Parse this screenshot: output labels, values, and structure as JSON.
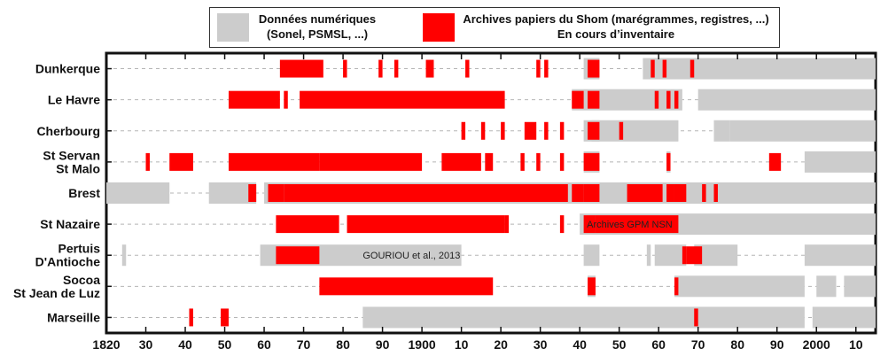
{
  "legend": {
    "digital": {
      "line1": "Données numériques",
      "line2": "(Sonel, PSMSL, ...)",
      "color": "#cccccc"
    },
    "paper": {
      "line1": "Archives papiers du Shom (marégrammes, registres, ...)",
      "line2": "En cours d’inventaire",
      "color": "#ff0000"
    }
  },
  "chart_data": {
    "type": "timeline",
    "title": "",
    "xlabel": "",
    "ylabel": "",
    "xlim": [
      1820,
      2015
    ],
    "x_tick_values": [
      1820,
      1830,
      1840,
      1850,
      1860,
      1870,
      1880,
      1890,
      1900,
      1910,
      1920,
      1930,
      1940,
      1950,
      1960,
      1970,
      1980,
      1990,
      2000,
      2010
    ],
    "x_tick_labels": [
      "1820",
      "30",
      "40",
      "50",
      "60",
      "70",
      "80",
      "90",
      "1900",
      "10",
      "20",
      "30",
      "40",
      "50",
      "60",
      "70",
      "80",
      "90",
      "2000",
      "10"
    ],
    "colors": {
      "digital": "#cccccc",
      "paper": "#ff0000"
    },
    "stations": [
      {
        "name": "Dunkerque",
        "digital": [
          [
            1941,
            1945
          ],
          [
            1956,
            2015
          ]
        ],
        "paper": [
          [
            1864,
            1875
          ],
          [
            1880,
            1881
          ],
          [
            1893,
            1894
          ],
          [
            1901,
            1903
          ],
          [
            1911,
            1912
          ],
          [
            1929,
            1930
          ],
          [
            1931,
            1932
          ],
          [
            1942,
            1945
          ],
          [
            1958,
            1959
          ],
          [
            1961,
            1962
          ],
          [
            1968,
            1969
          ],
          [
            1889,
            1890
          ]
        ]
      },
      {
        "name": "Le Havre",
        "digital": [
          [
            1938,
            1966
          ],
          [
            1970,
            2015
          ]
        ],
        "paper": [
          [
            1851,
            1864
          ],
          [
            1865,
            1866
          ],
          [
            1869,
            1921
          ],
          [
            1938,
            1941
          ],
          [
            1942,
            1945
          ],
          [
            1959,
            1960
          ],
          [
            1962,
            1963
          ],
          [
            1964,
            1965
          ]
        ]
      },
      {
        "name": "Cherbourg",
        "digital": [
          [
            1941,
            1945
          ],
          [
            1943,
            1965
          ],
          [
            1974,
            1978
          ],
          [
            1978,
            2015
          ]
        ],
        "paper": [
          [
            1910,
            1911
          ],
          [
            1915,
            1916
          ],
          [
            1920,
            1921
          ],
          [
            1926,
            1929
          ],
          [
            1931,
            1932
          ],
          [
            1935,
            1936
          ],
          [
            1942,
            1945
          ],
          [
            1950,
            1951
          ]
        ]
      },
      {
        "name": "St Servan\nSt Malo",
        "digital": [
          [
            1941,
            1945
          ],
          [
            1962,
            1963
          ],
          [
            1997,
            2015
          ]
        ],
        "paper": [
          [
            1830,
            1831
          ],
          [
            1836,
            1842
          ],
          [
            1851,
            1874
          ],
          [
            1874,
            1900
          ],
          [
            1905,
            1915
          ],
          [
            1916,
            1918
          ],
          [
            1925,
            1926
          ],
          [
            1929,
            1930
          ],
          [
            1935,
            1936
          ],
          [
            1941,
            1945
          ],
          [
            1962,
            1963
          ],
          [
            1988,
            1991
          ]
        ]
      },
      {
        "name": "Brest",
        "digital": [
          [
            1820,
            1836
          ],
          [
            1846,
            1858
          ],
          [
            1860,
            2015
          ]
        ],
        "paper": [
          [
            1856,
            1858
          ],
          [
            1861,
            1865
          ],
          [
            1865,
            1937
          ],
          [
            1938,
            1941
          ],
          [
            1941,
            1945
          ],
          [
            1952,
            1961
          ],
          [
            1962,
            1964
          ],
          [
            1964,
            1967
          ],
          [
            1971,
            1972
          ],
          [
            1974,
            1975
          ]
        ]
      },
      {
        "name": "St Nazaire",
        "digital": [
          [
            1940,
            2015
          ]
        ],
        "paper": [
          [
            1863,
            1879
          ],
          [
            1881,
            1921
          ],
          [
            1921,
            1922
          ],
          [
            1935,
            1936
          ],
          [
            1941,
            1944
          ],
          [
            1944,
            1965
          ]
        ],
        "annotation": "Archives GPM NSN"
      },
      {
        "name": "Pertuis\nD'Antioche",
        "digital": [
          [
            1824,
            1825
          ],
          [
            1859,
            1910
          ],
          [
            1941,
            1945
          ],
          [
            1957,
            1958
          ],
          [
            1959,
            1967
          ],
          [
            1969,
            1980
          ],
          [
            1997,
            2015
          ]
        ],
        "paper": [
          [
            1863,
            1874
          ],
          [
            1966,
            1967
          ],
          [
            1967,
            1971
          ]
        ],
        "annotation": "GOURIOU et al., 2013"
      },
      {
        "name": "Socoa\nSt Jean de Luz",
        "digital": [
          [
            1942,
            1944
          ],
          [
            1964,
            1997
          ],
          [
            2000,
            2005
          ],
          [
            2007,
            2015
          ]
        ],
        "paper": [
          [
            1874,
            1918
          ],
          [
            1942,
            1944
          ],
          [
            1964,
            1965
          ]
        ]
      },
      {
        "name": "Marseille",
        "digital": [
          [
            1885,
            1997
          ],
          [
            1999,
            2015
          ]
        ],
        "paper": [
          [
            1841,
            1842
          ],
          [
            1849,
            1851
          ],
          [
            1969,
            1970
          ]
        ]
      }
    ]
  }
}
